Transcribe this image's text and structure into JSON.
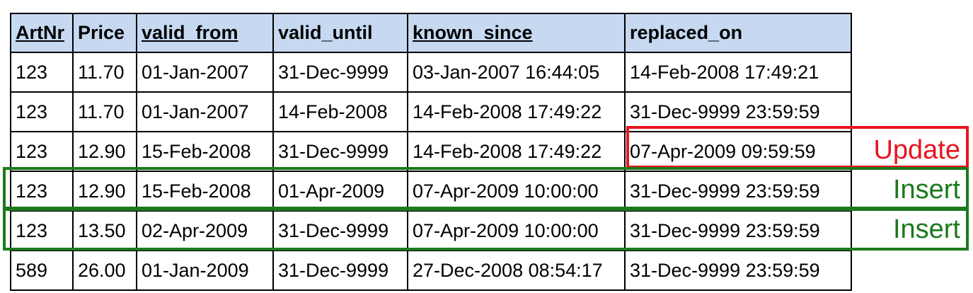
{
  "table": {
    "columns": [
      {
        "label": "ArtNr",
        "key": true
      },
      {
        "label": "Price",
        "key": false
      },
      {
        "label": "valid_from",
        "key": true
      },
      {
        "label": "valid_until",
        "key": false
      },
      {
        "label": "known_since",
        "key": true
      },
      {
        "label": "replaced_on",
        "key": false
      }
    ],
    "rows": [
      [
        "123",
        "11.70",
        "01-Jan-2007",
        "31-Dec-9999",
        "03-Jan-2007 16:44:05",
        "14-Feb-2008 17:49:21"
      ],
      [
        "123",
        "11.70",
        "01-Jan-2007",
        "14-Feb-2008",
        "14-Feb-2008 17:49:22",
        "31-Dec-9999 23:59:59"
      ],
      [
        "123",
        "12.90",
        "15-Feb-2008",
        "31-Dec-9999",
        "14-Feb-2008 17:49:22",
        "07-Apr-2009 09:59:59"
      ],
      [
        "123",
        "12.90",
        "15-Feb-2008",
        "01-Apr-2009",
        "07-Apr-2009 10:00:00",
        "31-Dec-9999 23:59:59"
      ],
      [
        "123",
        "13.50",
        "02-Apr-2009",
        "31-Dec-9999",
        "07-Apr-2009 10:00:00",
        "31-Dec-9999 23:59:59"
      ],
      [
        "589",
        "26.00",
        "01-Jan-2009",
        "31-Dec-9999",
        "27-Dec-2008 08:54:17",
        "31-Dec-9999 23:59:59"
      ]
    ]
  },
  "annotations": {
    "update_label": "Update",
    "insert_label_1": "Insert",
    "insert_label_2": "Insert"
  },
  "colors": {
    "header_background": "#c6d9f1",
    "update": "#e8141e",
    "insert": "#1c7a1c"
  }
}
